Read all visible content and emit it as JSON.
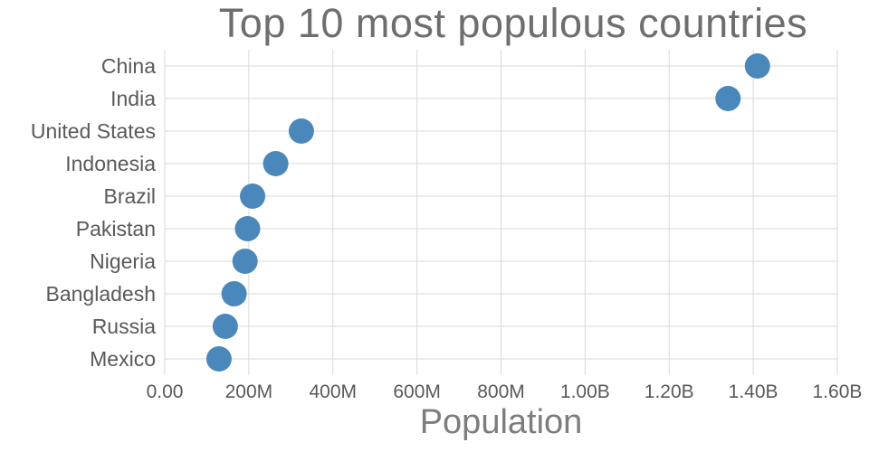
{
  "chart": {
    "title": "Top 10 most populous countries",
    "xlabel": "Population"
  },
  "chart_data": {
    "type": "scatter",
    "subtype": "dot-plot-horizontal",
    "title": "Top 10 most populous countries",
    "xlabel": "Population",
    "ylabel": "",
    "categories": [
      "China",
      "India",
      "United States",
      "Indonesia",
      "Brazil",
      "Pakistan",
      "Nigeria",
      "Bangladesh",
      "Russia",
      "Mexico"
    ],
    "values": [
      1410000000,
      1340000000,
      325000000,
      264000000,
      209000000,
      197000000,
      191000000,
      165000000,
      144000000,
      129000000
    ],
    "xlim": [
      0,
      1600000000
    ],
    "xticks": [
      0,
      200000000,
      400000000,
      600000000,
      800000000,
      1000000000,
      1200000000,
      1400000000,
      1600000000
    ],
    "xtick_labels": [
      "0.00",
      "200M",
      "400M",
      "600M",
      "800M",
      "1.00B",
      "1.20B",
      "1.40B",
      "1.60B"
    ],
    "grid": true,
    "legend": "none",
    "marker_color": "#4a87ba",
    "marker_radius": 14
  }
}
